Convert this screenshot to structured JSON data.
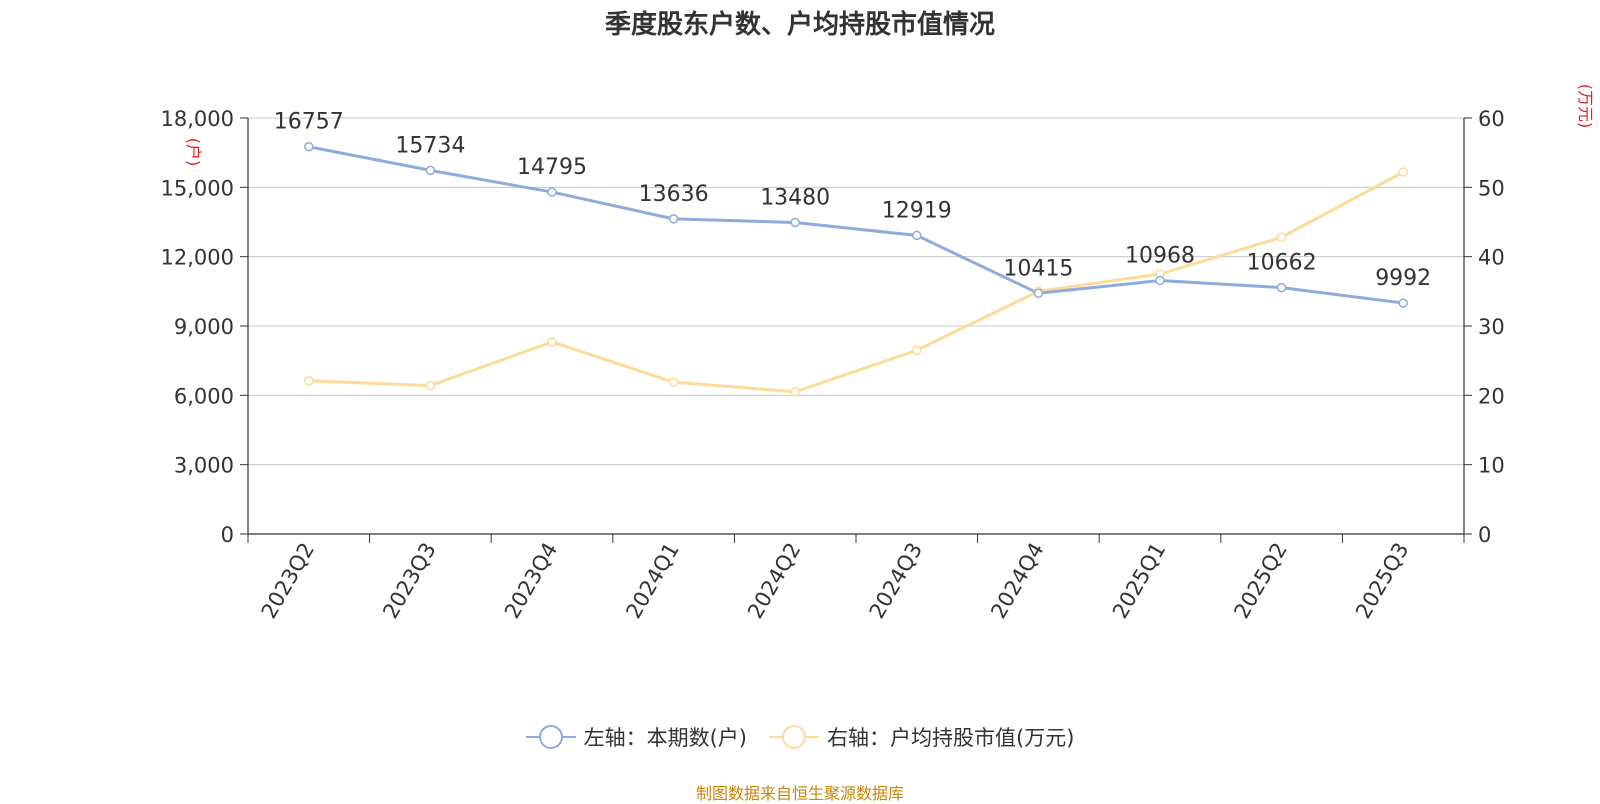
{
  "title": "季度股东户数、户均持股市值情况",
  "source": "制图数据来自恒生聚源数据库",
  "colors": {
    "series1": "#8fabdc",
    "series2": "#fddb9a",
    "axis_unit": "#e02020",
    "grid": "#c8c8c8",
    "axis": "#333333",
    "text": "#333333"
  },
  "chart_data": {
    "type": "line",
    "title": "季度股东户数、户均持股市值情况",
    "categories": [
      "2023Q2",
      "2023Q3",
      "2023Q4",
      "2024Q1",
      "2024Q2",
      "2024Q3",
      "2024Q4",
      "2025Q1",
      "2025Q2",
      "2025Q3"
    ],
    "y_left": {
      "unit": "(户)",
      "ylim": [
        0,
        18000
      ],
      "ticks": [
        0,
        3000,
        6000,
        9000,
        12000,
        15000,
        18000
      ],
      "tick_labels": [
        "0",
        "3,000",
        "6,000",
        "9,000",
        "12,000",
        "15,000",
        "18,000"
      ]
    },
    "y_right": {
      "unit": "(万元)",
      "ylim": [
        0,
        60
      ],
      "ticks": [
        0,
        10,
        20,
        30,
        40,
        50,
        60
      ],
      "tick_labels": [
        "0",
        "10",
        "20",
        "30",
        "40",
        "50",
        "60"
      ]
    },
    "grid": true,
    "legend_position": "bottom",
    "series": [
      {
        "name": "左轴：本期数(户)",
        "axis": "left",
        "values": [
          16757,
          15734,
          14795,
          13636,
          13480,
          12919,
          10415,
          10968,
          10662,
          9992
        ],
        "data_labels": [
          "16757",
          "15734",
          "14795",
          "13636",
          "13480",
          "12919",
          "10415",
          "10968",
          "10662",
          "9992"
        ]
      },
      {
        "name": "右轴：户均持股市值(万元)",
        "axis": "right",
        "values": [
          22.1,
          21.4,
          27.7,
          21.9,
          20.5,
          26.5,
          35.0,
          37.5,
          42.8,
          52.2
        ]
      }
    ]
  }
}
